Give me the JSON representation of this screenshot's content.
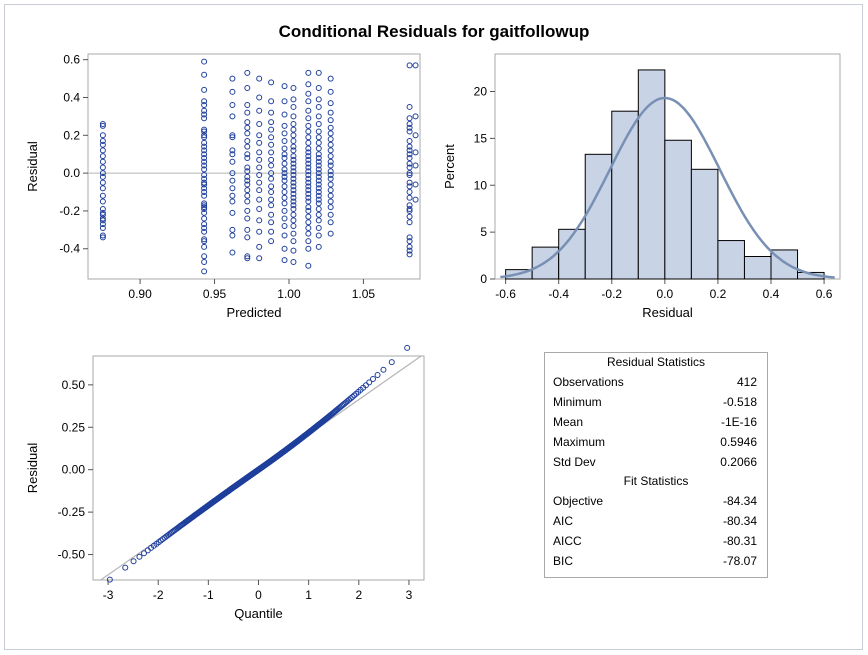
{
  "title": "Conditional Residuals for gaitfollowup",
  "colors": {
    "marker": "#1f3f9c",
    "bar_fill": "#c8d3e6",
    "curve": "#7890b4",
    "ref_line": "#b4b4b4",
    "frame": "#a9a9a9"
  },
  "chart_data": [
    {
      "type": "scatter",
      "title": "",
      "xlabel": "Predicted",
      "ylabel": "Residual",
      "xlim": [
        0.865,
        1.088
      ],
      "ylim": [
        -0.56,
        0.63
      ],
      "xticks": [
        "0.90",
        "0.95",
        "1.00",
        "1.05"
      ],
      "yticks": [
        "0.6",
        "0.4",
        "0.2",
        "0.0",
        "-0.2",
        "-0.4"
      ],
      "reference_line_y": 0,
      "columns": [
        {
          "x": 0.875,
          "y": [
            0.26,
            0.25,
            0.2,
            0.17,
            0.15,
            0.12,
            0.09,
            0.06,
            0.03,
            0.0,
            -0.02,
            -0.05,
            -0.08,
            -0.12,
            -0.15,
            -0.19,
            -0.21,
            -0.22,
            -0.24,
            -0.25,
            -0.27,
            -0.29,
            -0.33,
            -0.34
          ]
        },
        {
          "x": 0.943,
          "y": [
            0.59,
            0.52,
            0.44,
            0.38,
            0.36,
            0.33,
            0.31,
            0.29,
            0.23,
            0.22,
            0.2,
            0.19,
            0.16,
            0.14,
            0.12,
            0.1,
            0.08,
            0.06,
            0.04,
            0.02,
            -0.01,
            -0.03,
            -0.05,
            -0.06,
            -0.08,
            -0.1,
            -0.12,
            -0.16,
            -0.17,
            -0.18,
            -0.19,
            -0.21,
            -0.24,
            -0.27,
            -0.29,
            -0.31,
            -0.35,
            -0.36,
            -0.39,
            -0.44,
            -0.47,
            -0.52
          ]
        },
        {
          "x": 0.962,
          "y": [
            0.5,
            0.43,
            0.36,
            0.3,
            0.2,
            0.19,
            0.12,
            0.1,
            0.06,
            0.0,
            -0.04,
            -0.08,
            -0.12,
            -0.15,
            -0.21,
            -0.3,
            -0.33,
            -0.42
          ]
        },
        {
          "x": 0.972,
          "y": [
            0.53,
            0.45,
            0.36,
            0.32,
            0.27,
            0.24,
            0.21,
            0.17,
            0.14,
            0.1,
            0.08,
            0.03,
            0.01,
            -0.02,
            -0.04,
            -0.06,
            -0.09,
            -0.12,
            -0.15,
            -0.2,
            -0.24,
            -0.3,
            -0.34,
            -0.44,
            -0.45
          ]
        },
        {
          "x": 0.98,
          "y": [
            0.5,
            0.4,
            0.33,
            0.26,
            0.2,
            0.16,
            0.11,
            0.07,
            0.03,
            -0.01,
            -0.05,
            -0.09,
            -0.14,
            -0.19,
            -0.25,
            -0.31,
            -0.39,
            -0.45
          ]
        },
        {
          "x": 0.988,
          "y": [
            0.48,
            0.38,
            0.32,
            0.27,
            0.23,
            0.19,
            0.15,
            0.11,
            0.07,
            0.04,
            0.0,
            -0.03,
            -0.07,
            -0.1,
            -0.14,
            -0.17,
            -0.22,
            -0.26,
            -0.31,
            -0.36
          ]
        },
        {
          "x": 0.997,
          "y": [
            0.46,
            0.38,
            0.31,
            0.25,
            0.21,
            0.17,
            0.13,
            0.1,
            0.08,
            0.05,
            0.02,
            0.0,
            -0.02,
            -0.04,
            -0.07,
            -0.1,
            -0.13,
            -0.16,
            -0.2,
            -0.24,
            -0.28,
            -0.33,
            -0.4,
            -0.46
          ]
        },
        {
          "x": 1.003,
          "y": [
            0.45,
            0.39,
            0.35,
            0.3,
            0.26,
            0.23,
            0.2,
            0.17,
            0.14,
            0.12,
            0.09,
            0.07,
            0.05,
            0.03,
            0.01,
            -0.01,
            -0.03,
            -0.05,
            -0.07,
            -0.09,
            -0.11,
            -0.13,
            -0.15,
            -0.17,
            -0.19,
            -0.22,
            -0.25,
            -0.28,
            -0.32,
            -0.36,
            -0.41,
            -0.47
          ]
        },
        {
          "x": 1.013,
          "y": [
            0.53,
            0.47,
            0.42,
            0.38,
            0.33,
            0.29,
            0.25,
            0.22,
            0.19,
            0.16,
            0.13,
            0.11,
            0.09,
            0.07,
            0.05,
            0.03,
            0.01,
            -0.01,
            -0.03,
            -0.05,
            -0.07,
            -0.09,
            -0.11,
            -0.13,
            -0.15,
            -0.18,
            -0.2,
            -0.23,
            -0.26,
            -0.29,
            -0.32,
            -0.36,
            -0.4,
            -0.49
          ]
        },
        {
          "x": 1.02,
          "y": [
            0.53,
            0.45,
            0.39,
            0.35,
            0.3,
            0.26,
            0.22,
            0.19,
            0.16,
            0.13,
            0.1,
            0.08,
            0.06,
            0.04,
            0.02,
            0.0,
            -0.02,
            -0.04,
            -0.06,
            -0.08,
            -0.1,
            -0.12,
            -0.14,
            -0.16,
            -0.19,
            -0.22,
            -0.25,
            -0.29,
            -0.33,
            -0.39
          ]
        },
        {
          "x": 1.028,
          "y": [
            0.5,
            0.43,
            0.37,
            0.32,
            0.28,
            0.24,
            0.21,
            0.18,
            0.15,
            0.12,
            0.09,
            0.06,
            0.04,
            0.01,
            -0.01,
            -0.03,
            -0.06,
            -0.09,
            -0.12,
            -0.15,
            -0.18,
            -0.22,
            -0.26,
            -0.32
          ]
        },
        {
          "x": 1.081,
          "y": [
            0.57,
            0.35,
            0.29,
            0.26,
            0.24,
            0.22,
            0.17,
            0.14,
            0.12,
            0.1,
            0.08,
            0.05,
            0.03,
            0.0,
            -0.01,
            -0.05,
            -0.07,
            -0.1,
            -0.13,
            -0.17,
            -0.19,
            -0.2,
            -0.23,
            -0.26,
            -0.34,
            -0.36,
            -0.39,
            -0.41,
            -0.43
          ]
        },
        {
          "x": 1.085,
          "y": [
            0.57,
            0.3,
            0.2,
            0.11,
            0.04,
            -0.06,
            -0.14
          ]
        }
      ]
    },
    {
      "type": "bar",
      "subtype": "histogram",
      "title": "",
      "xlabel": "Residual",
      "ylabel": "Percent",
      "xlim": [
        -0.64,
        0.66
      ],
      "ylim": [
        0,
        24
      ],
      "xticks": [
        "-0.6",
        "-0.4",
        "-0.2",
        "0.0",
        "0.2",
        "0.4",
        "0.6"
      ],
      "yticks": [
        "0",
        "5",
        "10",
        "15",
        "20"
      ],
      "bin_width": 0.1,
      "bin_starts": [
        -0.6,
        -0.5,
        -0.4,
        -0.3,
        -0.2,
        -0.1,
        0.0,
        0.1,
        0.2,
        0.3,
        0.4,
        0.5
      ],
      "values": [
        1.0,
        3.4,
        5.3,
        13.3,
        17.9,
        22.3,
        14.8,
        11.7,
        4.1,
        2.4,
        3.1,
        0.7
      ],
      "normal_curve": {
        "mean": 0.0,
        "sd": 0.2066
      }
    },
    {
      "type": "scatter",
      "subtype": "qq",
      "title": "",
      "xlabel": "Quantile",
      "ylabel": "Residual",
      "xlim": [
        -3.3,
        3.3
      ],
      "ylim": [
        -0.65,
        0.67
      ],
      "xticks": [
        "-3",
        "-2",
        "-1",
        "0",
        "1",
        "2",
        "3"
      ],
      "yticks": [
        "0.50",
        "0.25",
        "0.00",
        "-0.25",
        "-0.50"
      ],
      "n": 412,
      "mean": 0.0,
      "sd": 0.2066,
      "reference_line": {
        "intercept": 0.0,
        "slope": 0.2066
      }
    }
  ],
  "stats_table": {
    "residual_header": "Residual Statistics",
    "residual_rows": [
      {
        "label": "Observations",
        "value": "412"
      },
      {
        "label": "Minimum",
        "value": "-0.518"
      },
      {
        "label": "Mean",
        "value": "-1E-16"
      },
      {
        "label": "Maximum",
        "value": "0.5946"
      },
      {
        "label": "Std Dev",
        "value": "0.2066"
      }
    ],
    "fit_header": "Fit Statistics",
    "fit_rows": [
      {
        "label": "Objective",
        "value": "-84.34"
      },
      {
        "label": "AIC",
        "value": "-80.34"
      },
      {
        "label": "AICC",
        "value": "-80.31"
      },
      {
        "label": "BIC",
        "value": "-78.07"
      }
    ]
  }
}
